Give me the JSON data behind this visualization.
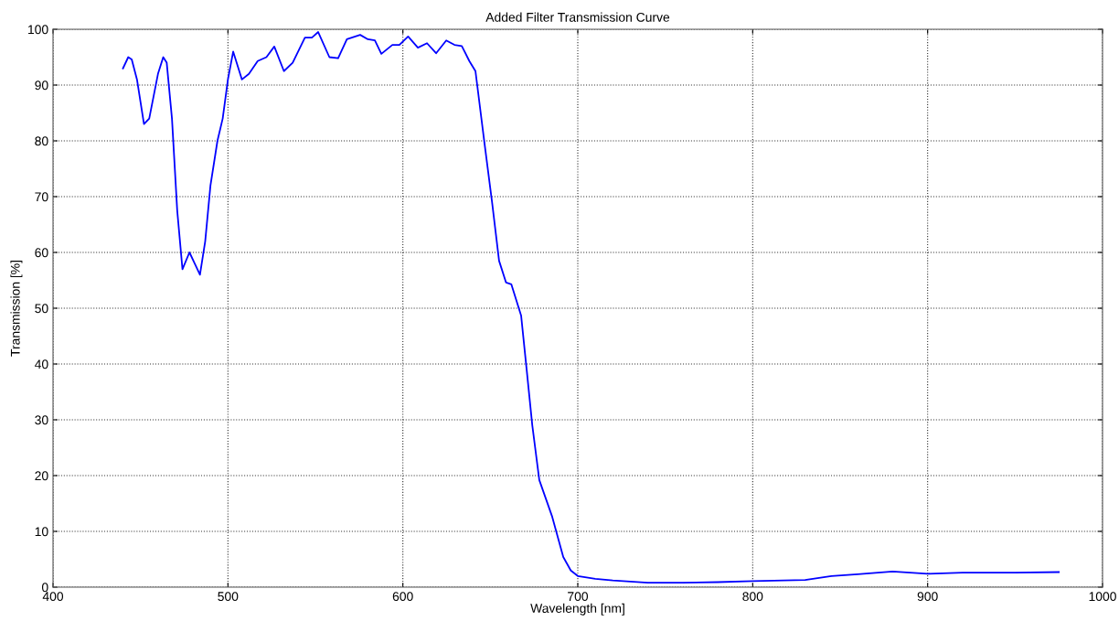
{
  "chart_data": {
    "type": "line",
    "title": "Added Filter Transmission Curve",
    "xlabel": "Wavelength [nm]",
    "ylabel": "Transmission [%]",
    "xlim": [
      400,
      1000
    ],
    "xticks": [
      400,
      500,
      600,
      700,
      800,
      900,
      1000
    ],
    "ylim": [
      0,
      100
    ],
    "yticks": [
      0,
      10,
      20,
      30,
      40,
      50,
      60,
      70,
      80,
      90,
      100
    ],
    "grid": true,
    "line_style": "solid",
    "marker": "none",
    "series": [
      {
        "color": "#0000ff",
        "x": [
          440,
          443,
          445,
          448,
          452,
          455,
          460,
          463,
          465,
          468,
          471,
          474,
          478,
          481,
          484,
          487,
          490,
          494,
          497,
          500,
          503,
          508,
          512,
          517,
          522,
          526.5,
          532,
          537,
          544,
          548,
          551.6,
          558,
          563,
          568,
          575.6,
          580,
          584,
          587.7,
          594,
          598,
          603,
          608.6,
          613.8,
          619,
          624.8,
          629.5,
          633.7,
          638,
          641.5,
          642.5,
          646.7,
          651,
          655,
          659,
          662,
          667.6,
          670.8,
          674,
          678,
          685.4,
          691.7,
          696,
          700,
          710,
          720,
          740,
          760,
          780,
          800,
          830,
          845,
          860,
          880,
          900,
          920,
          950,
          975
        ],
        "values": [
          93,
          95,
          94.6,
          91,
          83,
          84,
          92,
          95,
          94,
          84,
          67.5,
          57,
          60,
          58,
          56,
          62,
          72,
          80,
          84,
          91,
          96,
          91,
          92,
          94.3,
          95,
          96.9,
          92.5,
          94,
          98.5,
          98.5,
          99.5,
          95,
          94.8,
          98.2,
          99,
          98.2,
          98,
          95.6,
          97.2,
          97.2,
          98.7,
          96.7,
          97.5,
          95.7,
          98,
          97.2,
          97,
          94.3,
          92.5,
          90,
          79.5,
          69,
          58.5,
          54.6,
          54.3,
          48.7,
          38.9,
          29,
          19.2,
          12.6,
          5.4,
          3,
          2,
          1.5,
          1.2,
          0.8,
          0.8,
          0.9,
          1.1,
          1.3,
          2,
          2.3,
          2.8,
          2.4,
          2.6,
          2.6,
          2.7
        ]
      }
    ]
  }
}
